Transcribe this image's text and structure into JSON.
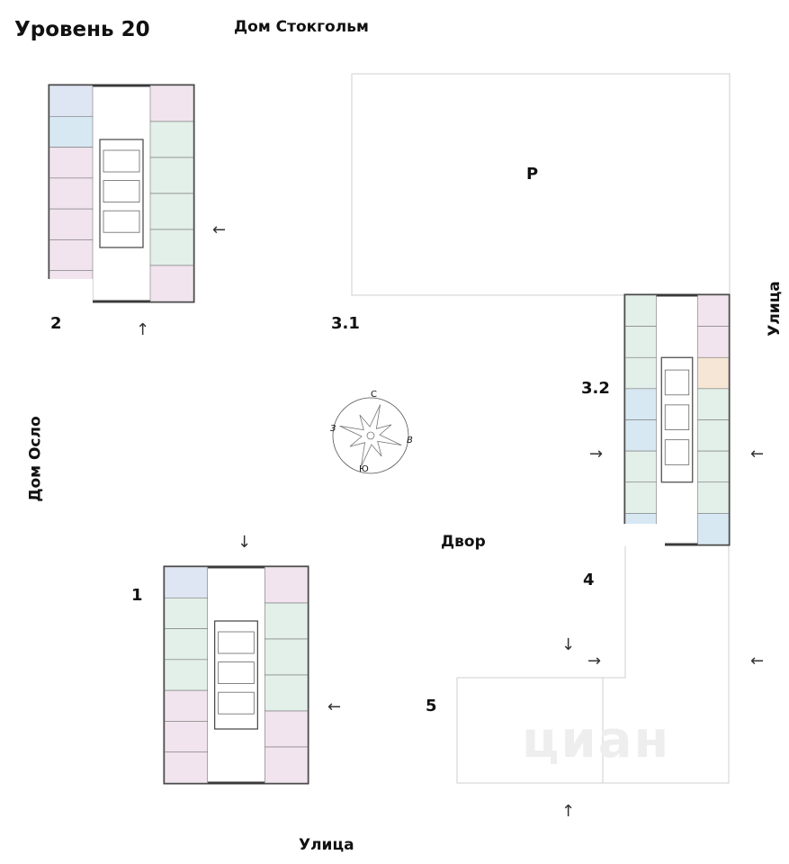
{
  "title": "Уровень 20",
  "houses": {
    "north": "Дом Стокгольм",
    "west": "Дом Осло"
  },
  "streets": {
    "east": "Улица",
    "south": "Улица"
  },
  "yard": "Двор",
  "parking": "Р",
  "sections": {
    "s1": "1",
    "s2": "2",
    "s31": "3.1",
    "s32": "3.2",
    "s4": "4",
    "s5": "5"
  },
  "compass": {
    "n": "С",
    "e": "В",
    "s": "Ю",
    "w": "З"
  },
  "watermark": "циан",
  "colors": {
    "one_room": "#dfe6f3",
    "studio": "#d7e8f3",
    "two_room": "#e3efe9",
    "three_room": "#f1e4ee",
    "euro": "#f6e6d6",
    "wall": "#3a3a3a",
    "outline": "#cfcfcf"
  }
}
